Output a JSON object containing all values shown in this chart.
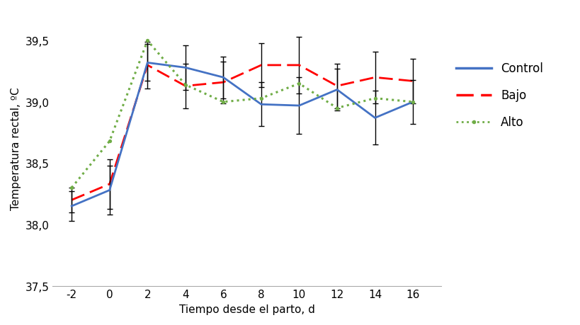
{
  "x": [
    -2,
    0,
    2,
    4,
    6,
    8,
    10,
    12,
    14,
    16
  ],
  "control": [
    38.15,
    38.28,
    39.32,
    39.28,
    39.2,
    38.98,
    38.97,
    39.1,
    38.87,
    39.0
  ],
  "bajo": [
    38.2,
    38.33,
    39.3,
    39.13,
    39.16,
    39.3,
    39.3,
    39.13,
    39.2,
    39.17
  ],
  "alto": [
    38.3,
    38.68,
    39.5,
    39.14,
    39.0,
    39.03,
    39.15,
    38.95,
    39.03,
    39.0
  ],
  "control_err": [
    0.12,
    0.2,
    0.15,
    0.18,
    0.17,
    0.18,
    0.23,
    0.17,
    0.22,
    0.18
  ],
  "bajo_err": [
    0.1,
    0.2,
    0.19,
    0.18,
    0.17,
    0.18,
    0.23,
    0.18,
    0.21,
    0.18
  ],
  "xlabel": "Tiempo desde el parto, d",
  "ylabel": "Temperatura rectal, ºC",
  "ylim": [
    37.5,
    39.75
  ],
  "yticks": [
    37.5,
    38.0,
    38.5,
    39.0,
    39.5
  ],
  "ytick_labels": [
    "37,5",
    "38,0",
    "38,5",
    "39,0",
    "39,5"
  ],
  "xticks": [
    -2,
    0,
    2,
    4,
    6,
    8,
    10,
    12,
    14,
    16
  ],
  "control_color": "#4472C4",
  "bajo_color": "#FF0000",
  "alto_color": "#70AD47",
  "fontsize": 11
}
